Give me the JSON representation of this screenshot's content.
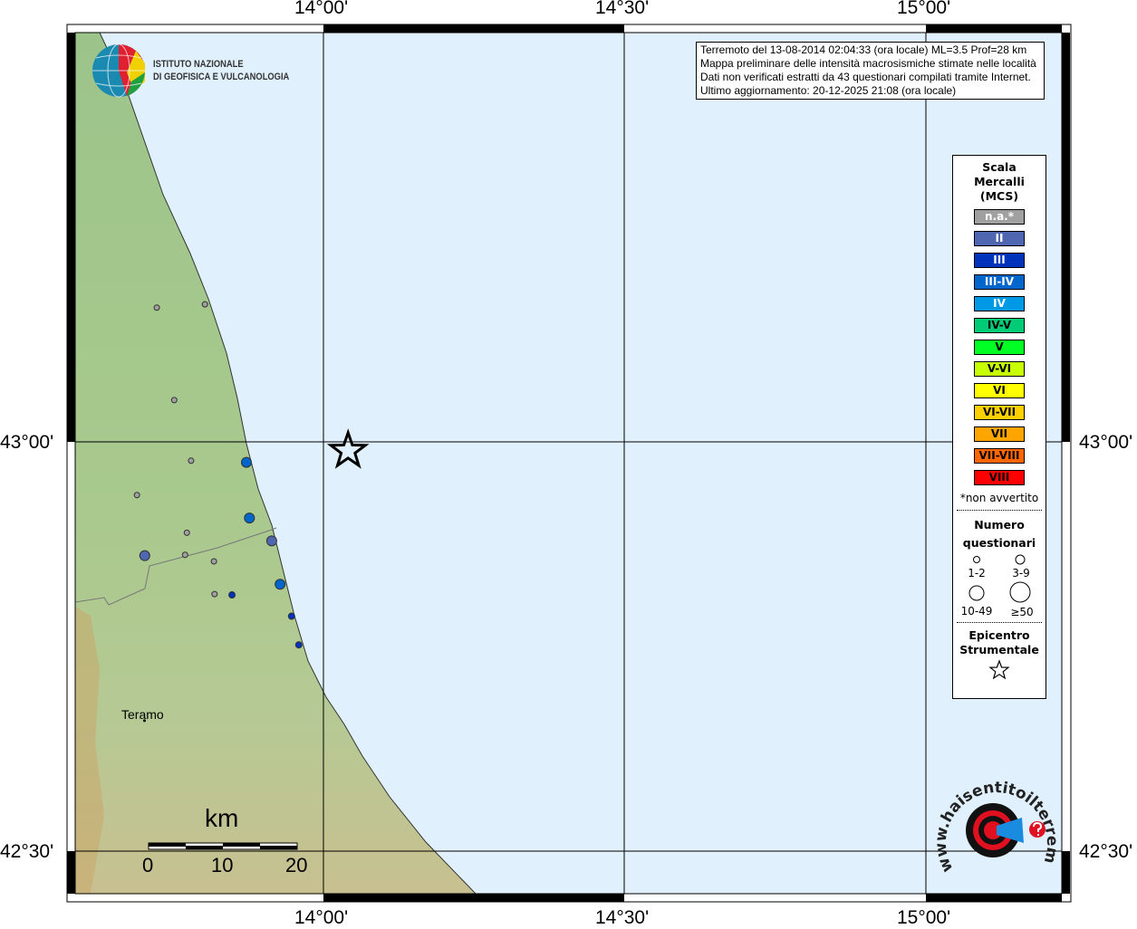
{
  "map": {
    "lon_ticks": [
      "14°00'",
      "14°30'",
      "15°00'"
    ],
    "lat_ticks": [
      "43°00'",
      "42°30'"
    ],
    "colors": {
      "sea": "#e0f0fc",
      "land": "#a8c890",
      "grid": "#000000"
    },
    "epicenter": {
      "lon": 14.041,
      "lat": 42.989,
      "icon": "star-icon"
    },
    "places": [
      {
        "name": "Teramo",
        "lon": 13.704,
        "lat": 42.666
      }
    ],
    "points": [
      {
        "lon": 13.723,
        "lat": 43.164,
        "intensity": "n.a.",
        "questionnaires": "1-2"
      },
      {
        "lon": 13.803,
        "lat": 43.168,
        "intensity": "n.a.",
        "questionnaires": "1-2"
      },
      {
        "lon": 13.752,
        "lat": 43.051,
        "intensity": "n.a.",
        "questionnaires": "1-2"
      },
      {
        "lon": 13.78,
        "lat": 42.977,
        "intensity": "n.a.",
        "questionnaires": "1-2"
      },
      {
        "lon": 13.69,
        "lat": 42.935,
        "intensity": "n.a.",
        "questionnaires": "1-2"
      },
      {
        "lon": 13.773,
        "lat": 42.889,
        "intensity": "n.a.",
        "questionnaires": "1-2"
      },
      {
        "lon": 13.77,
        "lat": 42.862,
        "intensity": "n.a.",
        "questionnaires": "1-2"
      },
      {
        "lon": 13.818,
        "lat": 42.854,
        "intensity": "n.a.",
        "questionnaires": "1-2"
      },
      {
        "lon": 13.819,
        "lat": 42.814,
        "intensity": "n.a.",
        "questionnaires": "1-2"
      },
      {
        "lon": 13.872,
        "lat": 42.975,
        "intensity": "III-IV",
        "questionnaires": "3-9"
      },
      {
        "lon": 13.877,
        "lat": 42.907,
        "intensity": "III-IV",
        "questionnaires": "3-9"
      },
      {
        "lon": 13.914,
        "lat": 42.879,
        "intensity": "II",
        "questionnaires": "3-9"
      },
      {
        "lon": 13.703,
        "lat": 42.861,
        "intensity": "II",
        "questionnaires": "3-9"
      },
      {
        "lon": 13.928,
        "lat": 42.826,
        "intensity": "III-IV",
        "questionnaires": "3-9"
      },
      {
        "lon": 13.848,
        "lat": 42.813,
        "intensity": "III",
        "questionnaires": "1-2"
      },
      {
        "lon": 13.947,
        "lat": 42.787,
        "intensity": "III",
        "questionnaires": "1-2"
      },
      {
        "lon": 13.959,
        "lat": 42.752,
        "intensity": "III",
        "questionnaires": "1-2"
      }
    ],
    "scale_bar": {
      "unit": "km",
      "labels": [
        "0",
        "10",
        "20"
      ]
    }
  },
  "logo_ingv": {
    "line1": "ISTITUTO NAZIONALE",
    "line2": "DI GEOFISICA E VULCANOLOGIA"
  },
  "logo_hsit": {
    "text": "www.haisentitoilterremoto.it"
  },
  "info": {
    "line1": "Terremoto del 13-08-2014 02:04:33 (ora locale) ML=3.5 Prof=28 km",
    "line2": "Mappa preliminare delle intensità macrosismiche stimate nelle località",
    "line3": "Dati non verificati estratti da 43 questionari compilati tramite Internet.",
    "line4": "Ultimo aggiornamento: 20-12-2025 21:08 (ora locale)"
  },
  "legend": {
    "title1": "Scala",
    "title2": "Mercalli",
    "title3": "(MCS)",
    "classes": [
      {
        "label": "n.a.*",
        "color": "#a0a0a0",
        "text": "#ffffff"
      },
      {
        "label": "II",
        "color": "#4f66b0",
        "text": "#ffffff"
      },
      {
        "label": "III",
        "color": "#0033bb",
        "text": "#ffffff"
      },
      {
        "label": "III-IV",
        "color": "#0066cc",
        "text": "#ffffff"
      },
      {
        "label": "IV",
        "color": "#0099e6",
        "text": "#ffffff"
      },
      {
        "label": "IV-V",
        "color": "#00cc77",
        "text": "#000000"
      },
      {
        "label": "V",
        "color": "#00ff22",
        "text": "#000000"
      },
      {
        "label": "V-VI",
        "color": "#c8ff00",
        "text": "#000000"
      },
      {
        "label": "VI",
        "color": "#ffff00",
        "text": "#000000"
      },
      {
        "label": "VI-VII",
        "color": "#ffd000",
        "text": "#000000"
      },
      {
        "label": "VII",
        "color": "#ffa500",
        "text": "#000000"
      },
      {
        "label": "VII-VIII",
        "color": "#ff6600",
        "text": "#000000"
      },
      {
        "label": "VIII",
        "color": "#ff0000",
        "text": "#000000"
      }
    ],
    "note": "*non avvertito",
    "count_title1": "Numero",
    "count_title2": "questionari",
    "sizes": [
      "1-2",
      "3-9",
      "10-49",
      "≥50"
    ],
    "epi_title1": "Epicentro",
    "epi_title2": "Strumentale"
  }
}
